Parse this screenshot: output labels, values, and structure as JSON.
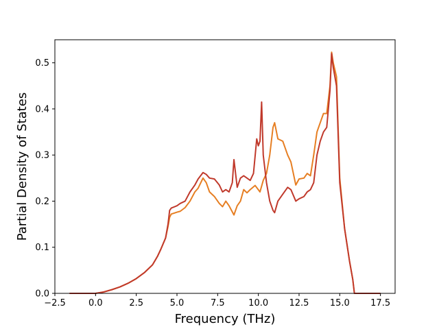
{
  "chart_data": {
    "type": "line",
    "title": "",
    "xlabel": "Frequency (THz)",
    "ylabel": "Partial Density of States",
    "xlim": [
      -2.5,
      18.4
    ],
    "ylim": [
      0,
      0.55
    ],
    "x_ticks": [
      -2.5,
      0.0,
      2.5,
      5.0,
      7.5,
      10.0,
      12.5,
      15.0,
      17.5
    ],
    "x_tick_labels": [
      "−2.5",
      "0.0",
      "2.5",
      "5.0",
      "7.5",
      "10.0",
      "12.5",
      "15.0",
      "17.5"
    ],
    "y_ticks": [
      0.0,
      0.1,
      0.2,
      0.3,
      0.4,
      0.5
    ],
    "y_tick_labels": [
      "0.0",
      "0.1",
      "0.2",
      "0.3",
      "0.4",
      "0.5"
    ],
    "grid": false,
    "legend": "none",
    "series": [
      {
        "color": "#e67e22",
        "x": [
          -1.6,
          0.0,
          0.5,
          1.0,
          1.5,
          2.0,
          2.5,
          3.0,
          3.5,
          3.8,
          4.0,
          4.3,
          4.45,
          4.55,
          4.65,
          5.0,
          5.2,
          5.5,
          5.8,
          6.1,
          6.3,
          6.6,
          6.8,
          7.0,
          7.3,
          7.6,
          7.8,
          8.0,
          8.2,
          8.5,
          8.7,
          8.9,
          9.1,
          9.3,
          9.5,
          9.8,
          10.1,
          10.3,
          10.5,
          10.7,
          10.9,
          11.0,
          11.2,
          11.5,
          11.8,
          12.0,
          12.3,
          12.5,
          12.8,
          13.0,
          13.2,
          13.4,
          13.6,
          13.8,
          14.0,
          14.2,
          14.4,
          14.5,
          14.6,
          14.8,
          15.0,
          15.3,
          15.6,
          15.8,
          15.9,
          17.5
        ],
        "y": [
          0.0,
          0.0,
          0.003,
          0.008,
          0.014,
          0.022,
          0.032,
          0.045,
          0.062,
          0.08,
          0.095,
          0.12,
          0.145,
          0.165,
          0.172,
          0.176,
          0.178,
          0.186,
          0.2,
          0.22,
          0.228,
          0.25,
          0.24,
          0.22,
          0.21,
          0.195,
          0.188,
          0.2,
          0.19,
          0.17,
          0.19,
          0.2,
          0.225,
          0.218,
          0.225,
          0.234,
          0.22,
          0.245,
          0.26,
          0.3,
          0.36,
          0.37,
          0.335,
          0.33,
          0.3,
          0.285,
          0.235,
          0.248,
          0.25,
          0.26,
          0.255,
          0.3,
          0.35,
          0.37,
          0.39,
          0.39,
          0.45,
          0.523,
          0.5,
          0.47,
          0.25,
          0.14,
          0.07,
          0.03,
          0.0,
          0.0
        ]
      },
      {
        "color": "#c0392b",
        "x": [
          -1.6,
          0.0,
          0.5,
          1.0,
          1.5,
          2.0,
          2.5,
          3.0,
          3.5,
          3.8,
          4.0,
          4.3,
          4.45,
          4.55,
          4.65,
          5.0,
          5.2,
          5.5,
          5.8,
          6.1,
          6.3,
          6.6,
          6.8,
          7.0,
          7.3,
          7.6,
          7.8,
          8.0,
          8.2,
          8.4,
          8.5,
          8.7,
          8.9,
          9.1,
          9.3,
          9.5,
          9.7,
          9.9,
          10.0,
          10.1,
          10.2,
          10.3,
          10.5,
          10.7,
          10.9,
          11.0,
          11.2,
          11.5,
          11.8,
          12.0,
          12.3,
          12.5,
          12.8,
          13.0,
          13.2,
          13.4,
          13.6,
          13.8,
          14.0,
          14.2,
          14.4,
          14.5,
          14.6,
          14.8,
          15.0,
          15.3,
          15.6,
          15.8,
          15.9,
          17.5
        ],
        "y": [
          0.0,
          0.0,
          0.003,
          0.008,
          0.014,
          0.022,
          0.032,
          0.045,
          0.062,
          0.08,
          0.095,
          0.12,
          0.15,
          0.18,
          0.185,
          0.19,
          0.195,
          0.2,
          0.22,
          0.235,
          0.248,
          0.262,
          0.258,
          0.25,
          0.248,
          0.235,
          0.22,
          0.225,
          0.22,
          0.24,
          0.29,
          0.23,
          0.25,
          0.255,
          0.25,
          0.245,
          0.26,
          0.335,
          0.32,
          0.33,
          0.415,
          0.3,
          0.24,
          0.2,
          0.18,
          0.175,
          0.2,
          0.215,
          0.23,
          0.225,
          0.2,
          0.205,
          0.21,
          0.22,
          0.225,
          0.24,
          0.3,
          0.33,
          0.35,
          0.36,
          0.44,
          0.52,
          0.49,
          0.45,
          0.24,
          0.14,
          0.07,
          0.03,
          0.0,
          0.0
        ]
      }
    ]
  }
}
